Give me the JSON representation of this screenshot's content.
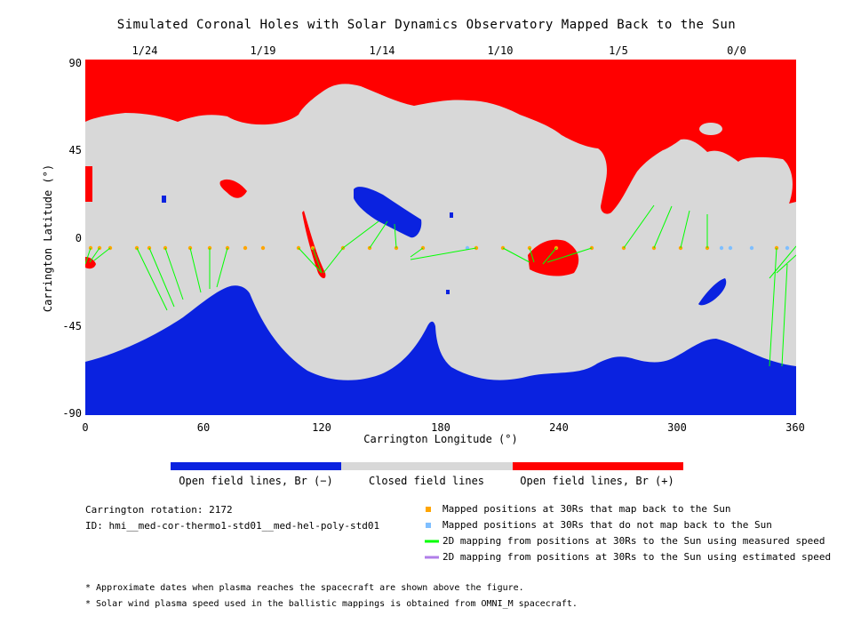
{
  "colors": {
    "open_negative": "#0a22e0",
    "closed": "#d8d8d8",
    "open_positive": "#ff0000",
    "mapped": "#ffa500",
    "unmapped": "#7fbfff",
    "measured_line": "#00ff00",
    "estimated_line": "#b07ee8"
  },
  "chart_data": {
    "type": "map",
    "title": "Simulated Coronal Holes with Solar Dynamics Observatory Mapped Back to the Sun",
    "xlabel": "Carrington Longitude (°)",
    "ylabel": "Carrington Latitude (°)",
    "xlim": [
      0,
      360
    ],
    "ylim": [
      -90,
      90
    ],
    "x_ticks": [
      "0",
      "60",
      "120",
      "180",
      "240",
      "300",
      "360"
    ],
    "y_ticks": [
      "90",
      "45",
      "0",
      "-45",
      "-90"
    ],
    "top_ticks": [
      "1/24",
      "1/19",
      "1/14",
      "1/10",
      "1/5",
      "0/0"
    ],
    "colorbar": [
      "Open field lines, Br (−)",
      "Closed field lines",
      "Open field lines, Br (+)"
    ]
  },
  "info": {
    "rotation": "Carrington rotation: 2172",
    "id": "ID: hmi__med-cor-thermo1-std01__med-hel-poly-std01"
  },
  "legend": [
    {
      "label": "Mapped positions at 30Rs that map back to the Sun",
      "symbol": "mapped-square"
    },
    {
      "label": "Mapped positions at 30Rs that do not map back to the Sun",
      "symbol": "unmapped-square"
    },
    {
      "label": "2D mapping from positions at 30Rs to the Sun using measured speed",
      "symbol": "measured-line"
    },
    {
      "label": "2D mapping from positions at 30Rs to the Sun using estimated speed",
      "symbol": "estimated-line"
    }
  ],
  "notes": [
    "* Approximate dates when plasma reaches the spacecraft are shown above the figure.",
    "* Solar wind plasma speed used in the ballistic mappings is obtained from OMNI_M spacecraft."
  ]
}
